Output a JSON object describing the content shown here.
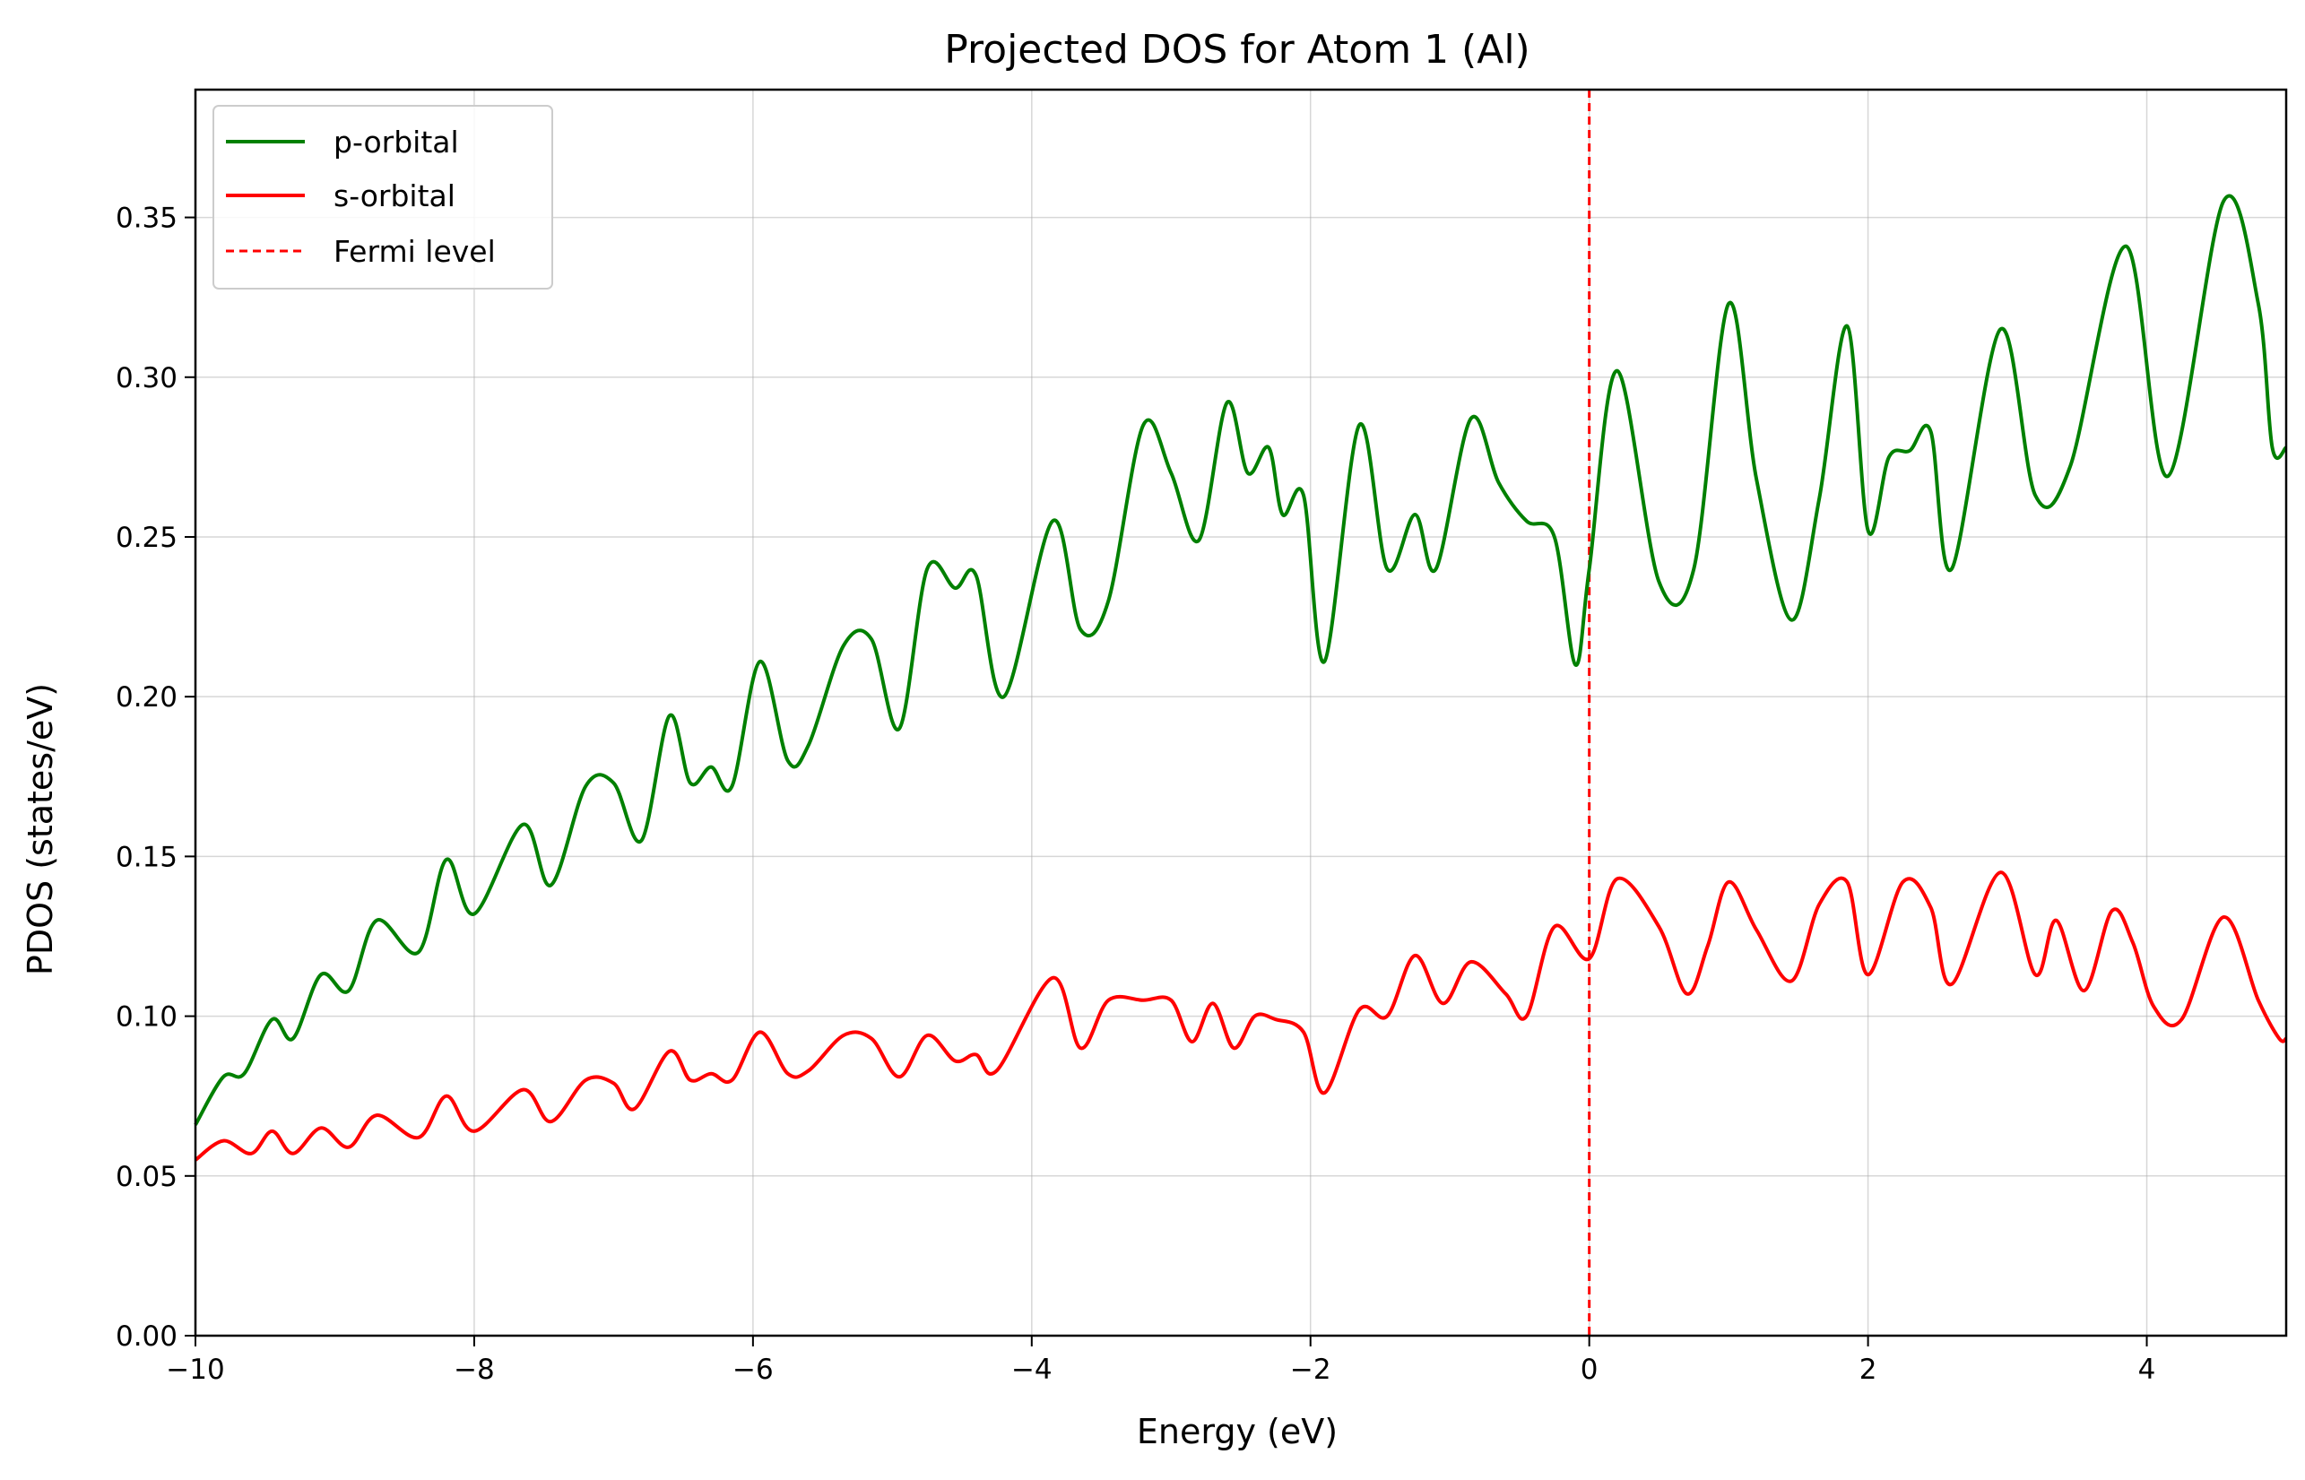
{
  "chart_data": {
    "type": "line",
    "title": "Projected DOS for Atom 1 (Al)",
    "xlabel": "Energy (eV)",
    "ylabel": "PDOS (states/eV)",
    "xlim": [
      -10,
      5
    ],
    "ylim": [
      0,
      0.39
    ],
    "xticks": [
      -10,
      -8,
      -6,
      -4,
      -2,
      0,
      2,
      4
    ],
    "xtick_labels": [
      "−10",
      "−8",
      "−6",
      "−4",
      "−2",
      "0",
      "2",
      "4"
    ],
    "yticks": [
      0.0,
      0.05,
      0.1,
      0.15,
      0.2,
      0.25,
      0.3,
      0.35
    ],
    "ytick_labels": [
      "0.00",
      "0.05",
      "0.10",
      "0.15",
      "0.20",
      "0.25",
      "0.30",
      "0.35"
    ],
    "grid": true,
    "legend_position": "top-left",
    "series": [
      {
        "name": "p-orbital",
        "color": "#008000",
        "x": [
          -10.0,
          -9.8,
          -9.65,
          -9.45,
          -9.3,
          -9.1,
          -8.9,
          -8.7,
          -8.4,
          -8.2,
          -8.0,
          -7.65,
          -7.45,
          -7.2,
          -7.0,
          -6.8,
          -6.6,
          -6.45,
          -6.3,
          -6.15,
          -5.95,
          -5.75,
          -5.6,
          -5.35,
          -5.15,
          -4.95,
          -4.75,
          -4.55,
          -4.4,
          -4.2,
          -3.85,
          -3.65,
          -3.45,
          -3.2,
          -3.0,
          -2.8,
          -2.6,
          -2.45,
          -2.3,
          -2.2,
          -2.05,
          -1.9,
          -1.65,
          -1.45,
          -1.25,
          -1.1,
          -0.85,
          -0.65,
          -0.45,
          -0.25,
          -0.1,
          0.0,
          0.2,
          0.5,
          0.75,
          1.0,
          1.2,
          1.45,
          1.65,
          1.85,
          2.0,
          2.15,
          2.3,
          2.45,
          2.6,
          2.95,
          3.2,
          3.45,
          3.85,
          4.15,
          4.55,
          4.8,
          4.9,
          5.0
        ],
        "values": [
          0.066,
          0.081,
          0.082,
          0.099,
          0.093,
          0.113,
          0.108,
          0.13,
          0.12,
          0.149,
          0.132,
          0.16,
          0.141,
          0.172,
          0.173,
          0.155,
          0.194,
          0.173,
          0.178,
          0.172,
          0.211,
          0.18,
          0.185,
          0.216,
          0.218,
          0.19,
          0.24,
          0.234,
          0.238,
          0.2,
          0.255,
          0.221,
          0.23,
          0.285,
          0.27,
          0.249,
          0.292,
          0.27,
          0.278,
          0.257,
          0.263,
          0.211,
          0.285,
          0.24,
          0.257,
          0.24,
          0.287,
          0.267,
          0.255,
          0.25,
          0.21,
          0.24,
          0.302,
          0.236,
          0.24,
          0.323,
          0.268,
          0.224,
          0.262,
          0.316,
          0.252,
          0.275,
          0.277,
          0.283,
          0.24,
          0.315,
          0.263,
          0.272,
          0.341,
          0.269,
          0.355,
          0.323,
          0.278,
          0.278
        ]
      },
      {
        "name": "s-orbital",
        "color": "#ff0000",
        "x": [
          -10.0,
          -9.8,
          -9.6,
          -9.45,
          -9.3,
          -9.1,
          -8.9,
          -8.7,
          -8.4,
          -8.2,
          -8.0,
          -7.65,
          -7.45,
          -7.2,
          -7.0,
          -6.85,
          -6.6,
          -6.45,
          -6.3,
          -6.15,
          -5.95,
          -5.75,
          -5.6,
          -5.35,
          -5.15,
          -4.95,
          -4.75,
          -4.55,
          -4.4,
          -4.25,
          -3.85,
          -3.65,
          -3.45,
          -3.2,
          -3.0,
          -2.85,
          -2.7,
          -2.55,
          -2.4,
          -2.25,
          -2.05,
          -1.9,
          -1.65,
          -1.45,
          -1.25,
          -1.05,
          -0.85,
          -0.6,
          -0.45,
          -0.25,
          0.0,
          0.2,
          0.5,
          0.7,
          0.85,
          1.0,
          1.2,
          1.45,
          1.65,
          1.85,
          2.0,
          2.25,
          2.45,
          2.6,
          2.95,
          3.2,
          3.35,
          3.55,
          3.75,
          3.9,
          4.05,
          4.25,
          4.55,
          4.8,
          4.95,
          5.0
        ],
        "values": [
          0.055,
          0.061,
          0.057,
          0.064,
          0.057,
          0.065,
          0.059,
          0.069,
          0.062,
          0.075,
          0.064,
          0.077,
          0.067,
          0.08,
          0.079,
          0.071,
          0.089,
          0.08,
          0.082,
          0.08,
          0.095,
          0.082,
          0.083,
          0.094,
          0.093,
          0.081,
          0.094,
          0.086,
          0.088,
          0.083,
          0.112,
          0.09,
          0.105,
          0.105,
          0.105,
          0.092,
          0.104,
          0.09,
          0.1,
          0.099,
          0.095,
          0.076,
          0.102,
          0.1,
          0.119,
          0.104,
          0.117,
          0.107,
          0.1,
          0.128,
          0.118,
          0.143,
          0.128,
          0.107,
          0.122,
          0.142,
          0.127,
          0.111,
          0.135,
          0.142,
          0.113,
          0.142,
          0.134,
          0.11,
          0.145,
          0.113,
          0.13,
          0.108,
          0.133,
          0.123,
          0.103,
          0.099,
          0.131,
          0.105,
          0.093,
          0.093
        ]
      }
    ],
    "reference_lines": [
      {
        "name": "Fermi level",
        "orientation": "vertical",
        "x": 0,
        "color": "#ff0000",
        "style": "dashed"
      }
    ]
  }
}
